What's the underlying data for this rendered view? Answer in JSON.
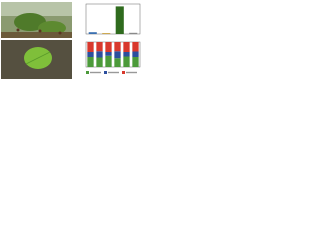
{
  "chart_data": [
    {
      "type": "bar",
      "categories": [
        null,
        null,
        null,
        null
      ],
      "values": [
        6,
        3,
        92,
        4
      ],
      "colors": [
        "#3a6fb0",
        "#c8a040",
        "#2f6b1e",
        "#8a8a8a"
      ],
      "ylim": [
        0,
        100
      ]
    },
    {
      "type": "stacked_bar",
      "categories": [
        null,
        null,
        null,
        null,
        null,
        null
      ],
      "series": [
        {
          "color": "#4c9a3a",
          "values": [
            40,
            38,
            45,
            35,
            42,
            40
          ]
        },
        {
          "color": "#2c4f9e",
          "values": [
            20,
            25,
            15,
            28,
            18,
            22
          ]
        },
        {
          "color": "#d8382c",
          "values": [
            40,
            37,
            40,
            37,
            40,
            38
          ]
        }
      ],
      "ylim": [
        0,
        100
      ]
    }
  ]
}
